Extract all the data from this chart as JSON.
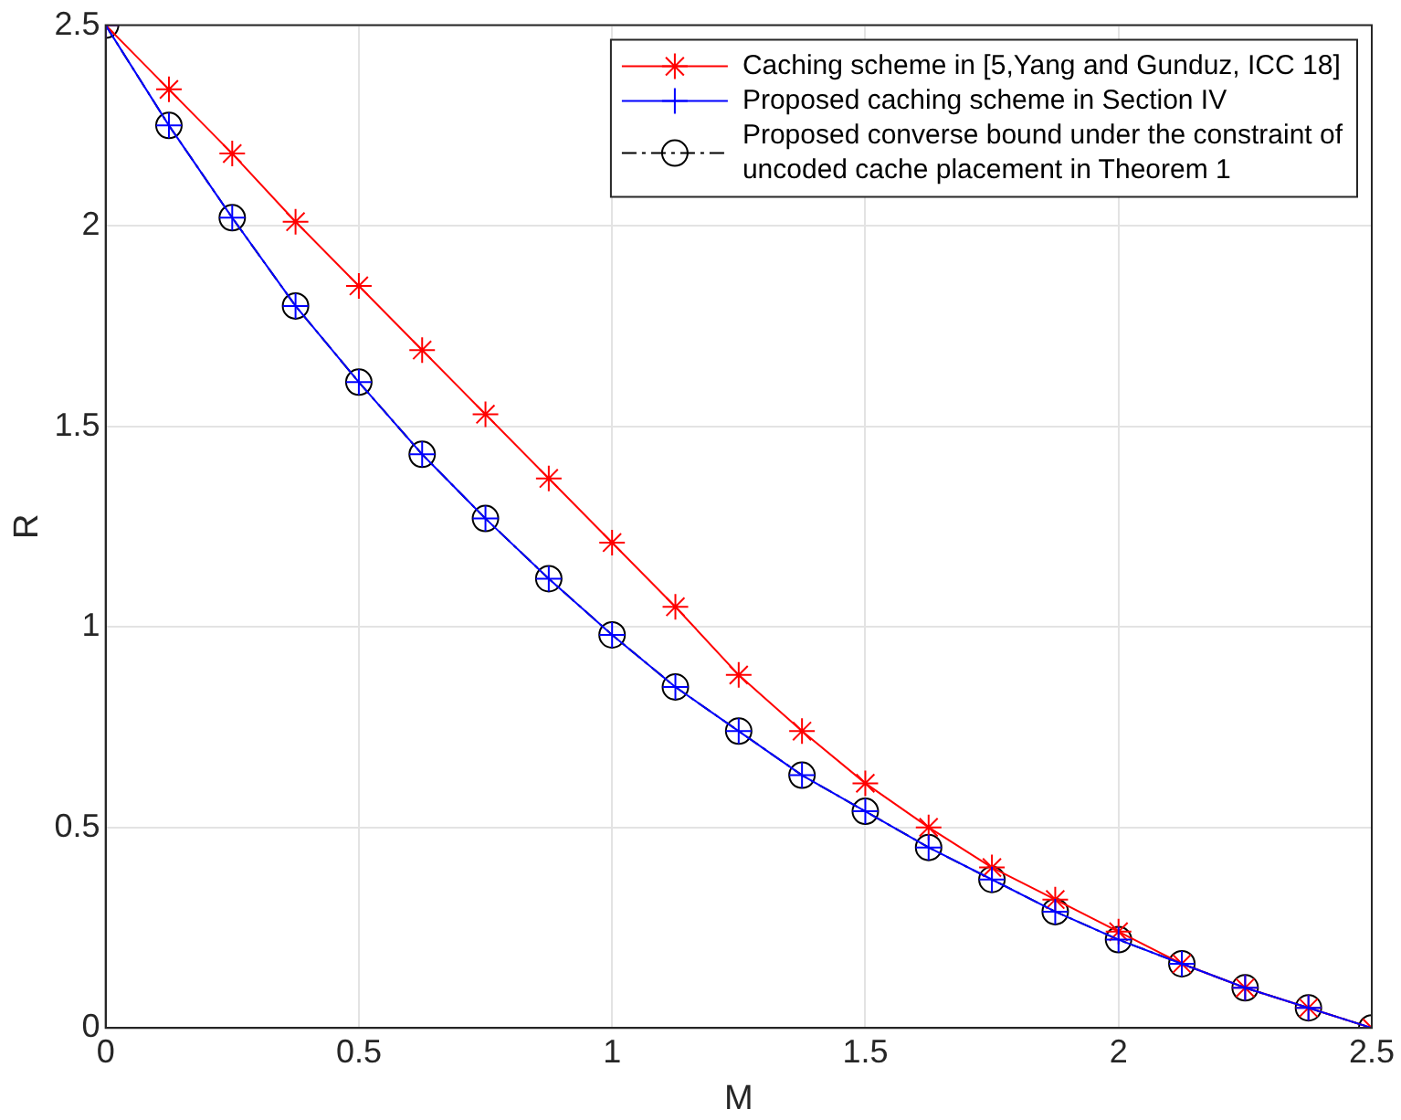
{
  "chart_data": {
    "type": "line",
    "xlabel": "M",
    "ylabel": "R",
    "x": [
      0,
      0.125,
      0.25,
      0.375,
      0.5,
      0.625,
      0.75,
      0.875,
      1,
      1.125,
      1.25,
      1.375,
      1.5,
      1.625,
      1.75,
      1.875,
      2,
      2.125,
      2.25,
      2.375,
      2.5
    ],
    "series": [
      {
        "name": "Caching scheme in [5,Yang and Gunduz, ICC 18]",
        "color": "#ff0000",
        "marker": "cross",
        "line_style": "solid",
        "values": [
          2.5,
          2.34,
          2.18,
          2.01,
          1.85,
          1.69,
          1.53,
          1.37,
          1.21,
          1.05,
          0.88,
          0.74,
          0.61,
          0.5,
          0.4,
          0.32,
          0.24,
          0.16,
          0.1,
          0.05,
          0
        ]
      },
      {
        "name": "Proposed caching scheme in Section IV",
        "color": "#0000ff",
        "marker": "cross",
        "line_style": "solid",
        "values": [
          2.5,
          2.25,
          2.02,
          1.8,
          1.61,
          1.43,
          1.27,
          1.12,
          0.98,
          0.85,
          0.74,
          0.63,
          0.54,
          0.45,
          0.37,
          0.29,
          0.22,
          0.16,
          0.1,
          0.05,
          0
        ]
      },
      {
        "name": "Proposed converse bound under the constraint of uncoded cache placement in Theorem 1",
        "color": "#000000",
        "marker": "circle",
        "line_style": "dashed",
        "values": [
          2.5,
          2.25,
          2.02,
          1.8,
          1.61,
          1.43,
          1.27,
          1.12,
          0.98,
          0.85,
          0.74,
          0.63,
          0.54,
          0.45,
          0.37,
          0.29,
          0.22,
          0.16,
          0.1,
          0.05,
          0
        ]
      }
    ],
    "xlim": [
      0,
      2.5
    ],
    "xticks": [
      0,
      0.5,
      1,
      1.5,
      2,
      2.5
    ],
    "ylim": [
      0,
      2.5
    ],
    "yticks": [
      0,
      0.5,
      1,
      1.5,
      2,
      2.5
    ],
    "grid": true,
    "legend": "top right"
  }
}
